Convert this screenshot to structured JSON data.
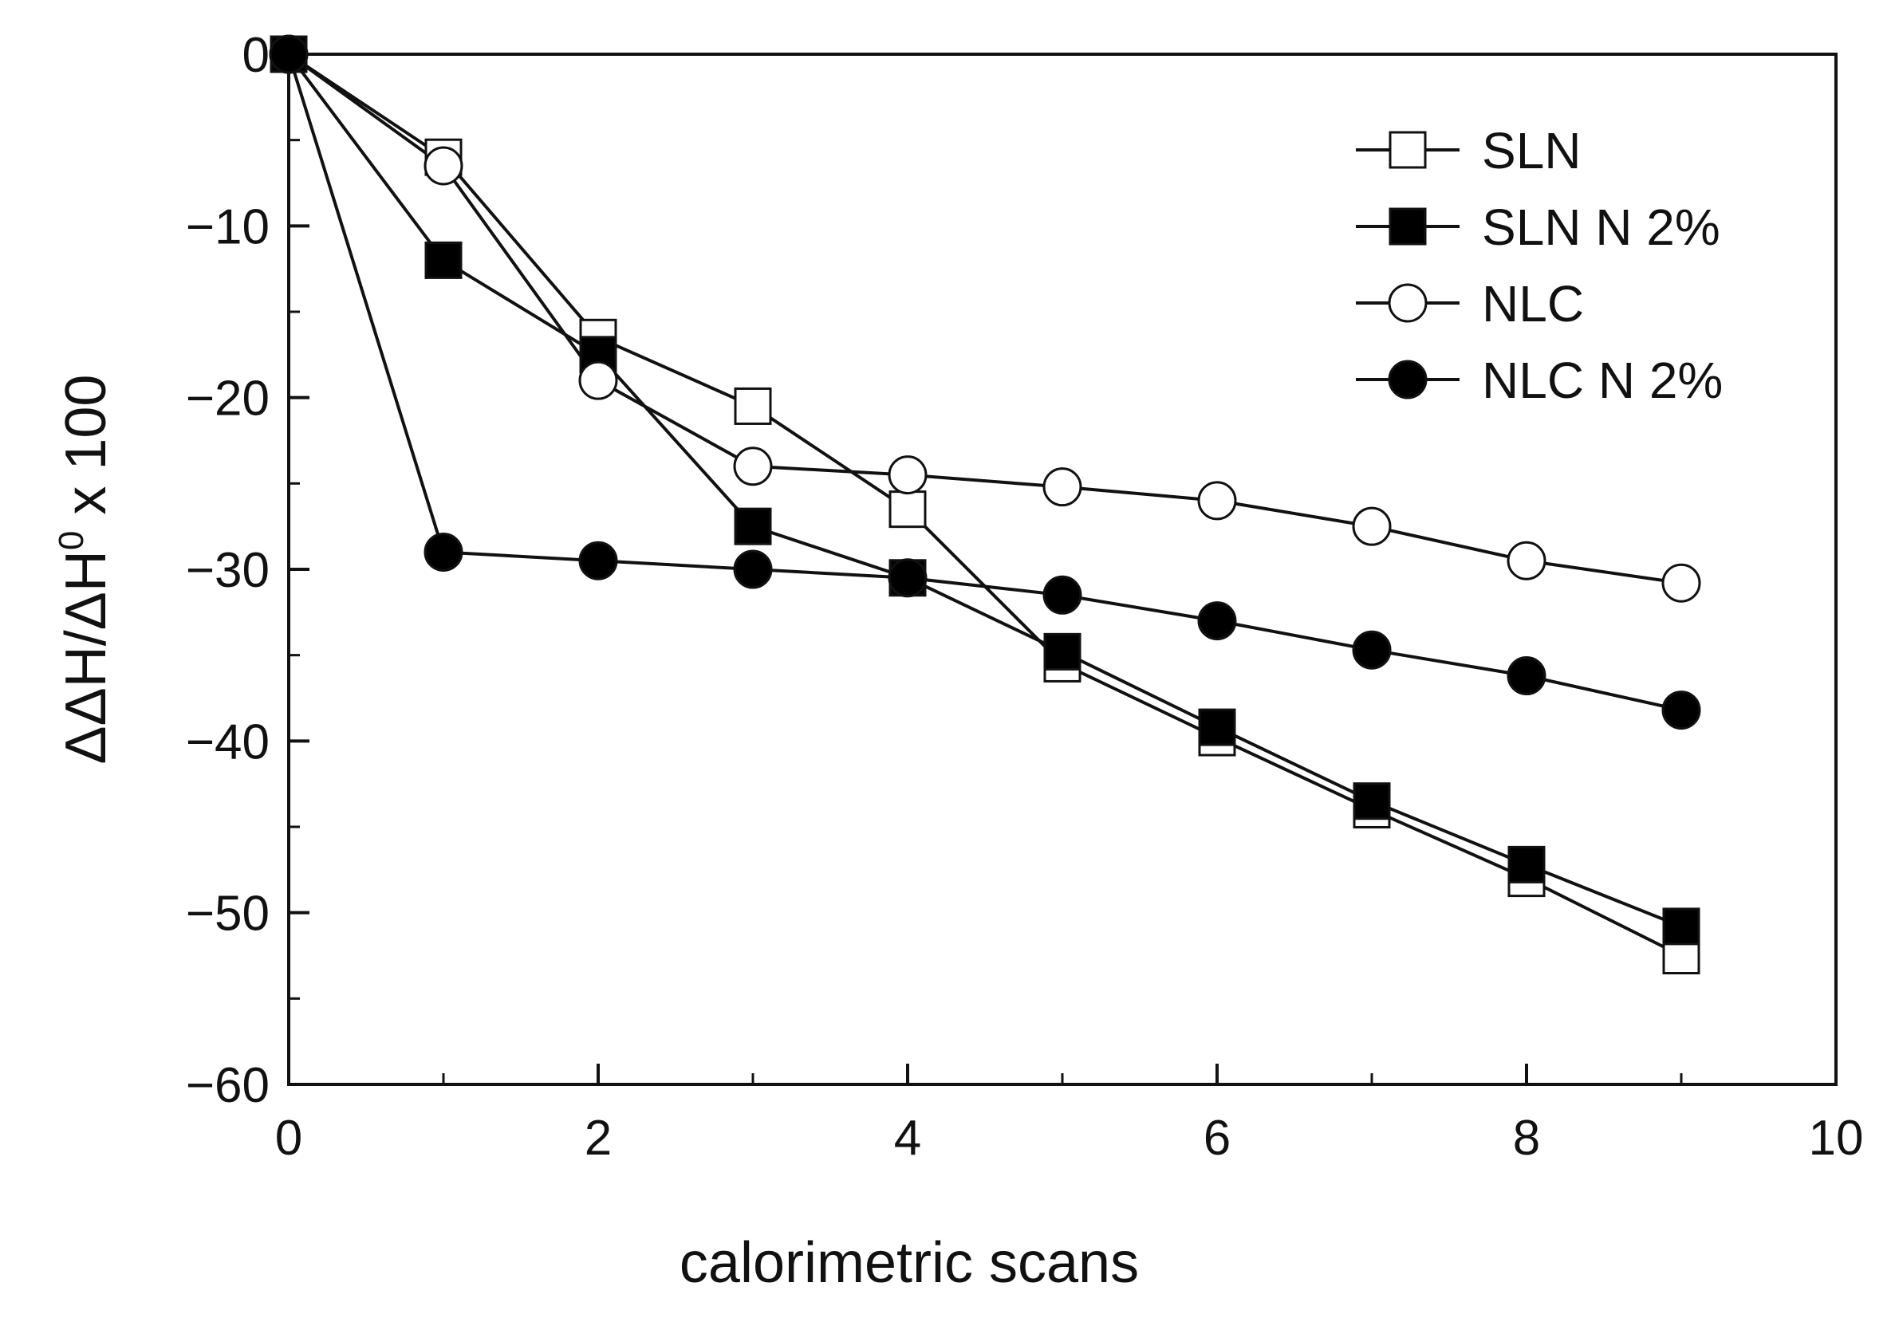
{
  "chart_data": {
    "type": "line",
    "title": "",
    "xlabel": "calorimetric scans",
    "ylabel_parts": {
      "main": "ΔΔH/ΔH",
      "sup": "0",
      "rest": " x 100"
    },
    "xlim": [
      0,
      10
    ],
    "ylim": [
      -60,
      0
    ],
    "x_major_ticks": [
      0,
      2,
      4,
      6,
      8,
      10
    ],
    "x_minor_ticks": [
      1,
      3,
      5,
      7,
      9
    ],
    "y_major_ticks": [
      0,
      -10,
      -20,
      -30,
      -40,
      -50,
      -60
    ],
    "y_minor_ticks": [
      -5,
      -15,
      -25,
      -35,
      -45,
      -55
    ],
    "x_tick_labels": [
      "0",
      "2",
      "4",
      "6",
      "8",
      "10"
    ],
    "y_tick_labels": [
      "0",
      "−10",
      "−20",
      "−30",
      "−40",
      "−50",
      "−60"
    ],
    "grid": false,
    "legend_position": "top-right",
    "x": [
      0,
      1,
      2,
      3,
      4,
      5,
      6,
      7,
      8,
      9
    ],
    "series": [
      {
        "name": "SLN",
        "marker": "square",
        "filled": false,
        "values": [
          0,
          -6,
          -16.5,
          -20.5,
          -26.5,
          -35.5,
          -39.8,
          -44,
          -48,
          -52.5
        ]
      },
      {
        "name": "SLN N 2%",
        "marker": "square",
        "filled": true,
        "values": [
          0,
          -12,
          -17.5,
          -27.5,
          -30.5,
          -34.8,
          -39.2,
          -43.5,
          -47.2,
          -50.8
        ]
      },
      {
        "name": "NLC",
        "marker": "circle",
        "filled": false,
        "values": [
          0,
          -6.5,
          -19,
          -24,
          -24.5,
          -25.2,
          -26,
          -27.5,
          -29.5,
          -30.8
        ]
      },
      {
        "name": "NLC N 2%",
        "marker": "circle",
        "filled": true,
        "values": [
          0,
          -29,
          -29.5,
          -30,
          -30.5,
          -31.5,
          -33,
          -34.7,
          -36.2,
          -38.2
        ]
      }
    ],
    "colors": {
      "line": "#111111",
      "fill_filled": "#000000",
      "fill_open": "#ffffff"
    }
  }
}
